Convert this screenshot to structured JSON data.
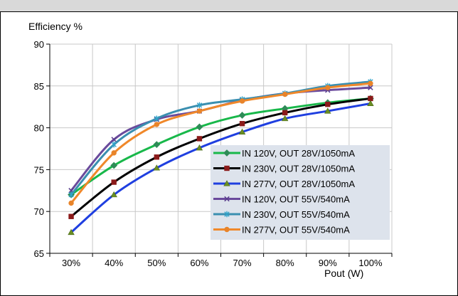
{
  "chart_data": {
    "type": "line",
    "ylabel": "Efficiency %",
    "xlabel": "Pout (W)",
    "x": [
      "30%",
      "40%",
      "50%",
      "60%",
      "70%",
      "80%",
      "90%",
      "100%"
    ],
    "ylim": [
      65,
      90
    ],
    "yticks": [
      65,
      70,
      75,
      80,
      85,
      90
    ],
    "grid": true,
    "legend_position": "bottom-right",
    "series": [
      {
        "name": "IN 120V, OUT 28V/1050mA",
        "color": "#2e8b57",
        "line": "#18b84a",
        "marker": "diamond",
        "values": [
          72.0,
          75.5,
          78.0,
          80.1,
          81.5,
          82.3,
          83.0,
          83.5
        ]
      },
      {
        "name": "IN 230V, OUT 28V/1050mA",
        "color": "#8b1a1a",
        "line": "#000000",
        "marker": "square",
        "values": [
          69.4,
          73.5,
          76.5,
          78.7,
          80.5,
          81.8,
          82.8,
          83.5
        ]
      },
      {
        "name": "IN 277V, OUT 28V/1050mA",
        "color": "#6b8e23",
        "line": "#1f3fe0",
        "marker": "triangle",
        "values": [
          67.5,
          72.0,
          75.2,
          77.6,
          79.5,
          81.1,
          82.0,
          82.9
        ]
      },
      {
        "name": "IN 120V, OUT 55V/540mA",
        "color": "#5b3f8f",
        "line": "#6a4a9c",
        "marker": "cross",
        "values": [
          72.5,
          78.6,
          81.0,
          82.0,
          83.3,
          84.1,
          84.5,
          84.8
        ]
      },
      {
        "name": "IN 230V, OUT 55V/540mA",
        "color": "#31a3c9",
        "line": "#3a8fb0",
        "marker": "star",
        "values": [
          72.0,
          78.0,
          81.1,
          82.7,
          83.4,
          84.1,
          85.0,
          85.5
        ]
      },
      {
        "name": "IN 277V, OUT 55V/540mA",
        "color": "#e8842a",
        "line": "#f0882a",
        "marker": "circle",
        "values": [
          71.0,
          77.0,
          80.4,
          82.0,
          83.2,
          84.0,
          84.8,
          85.3
        ]
      }
    ]
  }
}
